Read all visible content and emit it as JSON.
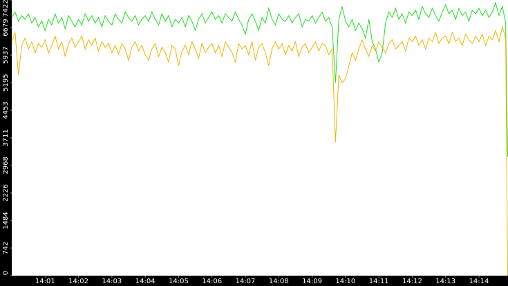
{
  "chart_data": {
    "type": "line",
    "x": [
      0,
      0.1,
      0.2,
      0.3,
      0.4,
      0.5,
      0.6,
      0.7,
      0.8,
      0.9,
      1,
      1.1,
      1.2,
      1.3,
      1.4,
      1.5,
      1.6,
      1.7,
      1.8,
      1.9,
      2,
      2.1,
      2.2,
      2.3,
      2.4,
      2.5,
      2.6,
      2.7,
      2.8,
      2.9,
      3,
      3.1,
      3.2,
      3.3,
      3.4,
      3.5,
      3.6,
      3.7,
      3.8,
      3.9,
      4,
      4.1,
      4.2,
      4.3,
      4.4,
      4.5,
      4.6,
      4.7,
      4.8,
      4.9,
      5,
      5.1,
      5.2,
      5.3,
      5.4,
      5.5,
      5.6,
      5.7,
      5.8,
      5.9,
      6,
      6.1,
      6.2,
      6.3,
      6.4,
      6.5,
      6.6,
      6.7,
      6.8,
      6.9,
      7,
      7.1,
      7.2,
      7.3,
      7.4,
      7.5,
      7.6,
      7.7,
      7.8,
      7.9,
      8,
      8.1,
      8.2,
      8.3,
      8.4,
      8.5,
      8.6,
      8.7,
      8.8,
      8.9,
      9,
      9.1,
      9.2,
      9.3,
      9.4,
      9.5,
      9.6,
      9.7,
      9.8,
      9.9,
      10,
      10.1,
      10.2,
      10.3,
      10.4,
      10.5,
      10.6,
      10.7,
      10.8,
      10.9,
      11,
      11.1,
      11.2,
      11.3,
      11.4,
      11.5,
      11.6,
      11.7,
      11.8,
      11.9,
      12,
      12.1,
      12.2,
      12.3,
      12.4,
      12.5,
      12.6,
      12.7,
      12.8,
      12.9,
      13,
      13.1,
      13.2,
      13.3,
      13.4,
      13.5,
      13.6,
      13.7,
      13.8,
      13.9,
      14,
      14.1,
      14.2,
      14.3,
      14.4,
      14.5,
      14.6,
      14.7,
      14.8,
      14.86
    ],
    "series": [
      {
        "color": "#22dd22",
        "values": [
          6950,
          7100,
          6850,
          7000,
          6900,
          7050,
          6800,
          6950,
          6700,
          6850,
          6600,
          6900,
          6750,
          7050,
          6800,
          6950,
          6650,
          7000,
          6850,
          6700,
          6900,
          6750,
          7050,
          6850,
          7000,
          6800,
          6950,
          6700,
          7000,
          6850,
          6750,
          7050,
          6900,
          6800,
          7100,
          6950,
          6850,
          7000,
          6750,
          6900,
          7000,
          6850,
          7100,
          6900,
          6750,
          7050,
          6850,
          7000,
          6700,
          6900,
          6800,
          6950,
          6700,
          7000,
          6850,
          6600,
          6900,
          7050,
          6800,
          6950,
          7100,
          6900,
          7000,
          6800,
          7050,
          6950,
          6850,
          7100,
          6900,
          6750,
          6500,
          6900,
          7050,
          6850,
          6600,
          6950,
          6800,
          7200,
          6900,
          6750,
          7050,
          6900,
          6850,
          7000,
          6800,
          6950,
          7050,
          6700,
          6900,
          6850,
          7000,
          6800,
          6950,
          7100,
          6850,
          6950,
          6700,
          5200,
          6900,
          7250,
          6850,
          6700,
          6900,
          6600,
          6800,
          6650,
          6400,
          6900,
          6300,
          6100,
          5750,
          6000,
          6800,
          7100,
          6950,
          7200,
          6900,
          7050,
          6800,
          7100,
          7000,
          7150,
          6900,
          7250,
          7050,
          6950,
          7200,
          7000,
          6850,
          7100,
          7300,
          7050,
          7150,
          6900,
          7200,
          7000,
          7100,
          6850,
          7150,
          7050,
          7200,
          7000,
          7150,
          6950,
          7100,
          7350,
          7000,
          7250,
          6800,
          3200
        ]
      },
      {
        "color": "#f0b400",
        "values": [
          6300,
          6550,
          5400,
          6200,
          6400,
          6100,
          6300,
          6000,
          6250,
          6150,
          6350,
          6000,
          6200,
          6450,
          6100,
          6300,
          5900,
          6250,
          6400,
          6150,
          6300,
          6450,
          6100,
          6350,
          6200,
          6400,
          6050,
          6300,
          6150,
          6250,
          6000,
          6200,
          5950,
          6250,
          6100,
          5800,
          6150,
          6300,
          6050,
          6200,
          5950,
          5800,
          6100,
          6250,
          5900,
          6150,
          6000,
          5750,
          6200,
          6100,
          5650,
          6050,
          6200,
          5950,
          6300,
          6100,
          5850,
          6250,
          6000,
          6150,
          6250,
          6000,
          6200,
          5900,
          6300,
          6150,
          6000,
          5750,
          6250,
          6100,
          6200,
          5950,
          6300,
          5800,
          6150,
          6250,
          6000,
          5650,
          6100,
          6300,
          6100,
          6250,
          5950,
          6200,
          6050,
          6300,
          5900,
          6150,
          6250,
          6000,
          6150,
          6300,
          6050,
          6250,
          6200,
          5950,
          6100,
          3600,
          5400,
          5200,
          5300,
          5650,
          6000,
          5800,
          6100,
          6350,
          6100,
          5900,
          6200,
          6050,
          6300,
          6150,
          6000,
          6250,
          6350,
          6100,
          6200,
          6300,
          6050,
          6400,
          6300,
          6450,
          6200,
          6350,
          6100,
          6400,
          6300,
          6550,
          6250,
          6400,
          6450,
          6250,
          6550,
          6300,
          6400,
          6200,
          6500,
          6350,
          6250,
          6450,
          6300,
          6500,
          6200,
          6450,
          6350,
          6600,
          6300,
          6700,
          6400,
          0
        ]
      }
    ],
    "xlim": [
      0,
      14.87
    ],
    "xticks": [
      {
        "value": 1,
        "label": "14:01"
      },
      {
        "value": 2,
        "label": "14:02"
      },
      {
        "value": 3,
        "label": "14:03"
      },
      {
        "value": 4,
        "label": "14:04"
      },
      {
        "value": 5,
        "label": "14:05"
      },
      {
        "value": 6,
        "label": "14:06"
      },
      {
        "value": 7,
        "label": "14:07"
      },
      {
        "value": 8,
        "label": "14:08"
      },
      {
        "value": 9,
        "label": "14:09"
      },
      {
        "value": 10,
        "label": "14:10"
      },
      {
        "value": 11,
        "label": "14:11"
      },
      {
        "value": 12,
        "label": "14:12"
      },
      {
        "value": 13,
        "label": "14:13"
      },
      {
        "value": 14,
        "label": "14:14"
      }
    ],
    "ylim": [
      0,
      7422
    ],
    "yticks": [
      0,
      742,
      1484,
      2226,
      2968,
      3711,
      4453,
      5195,
      5937,
      6679,
      7422
    ]
  }
}
